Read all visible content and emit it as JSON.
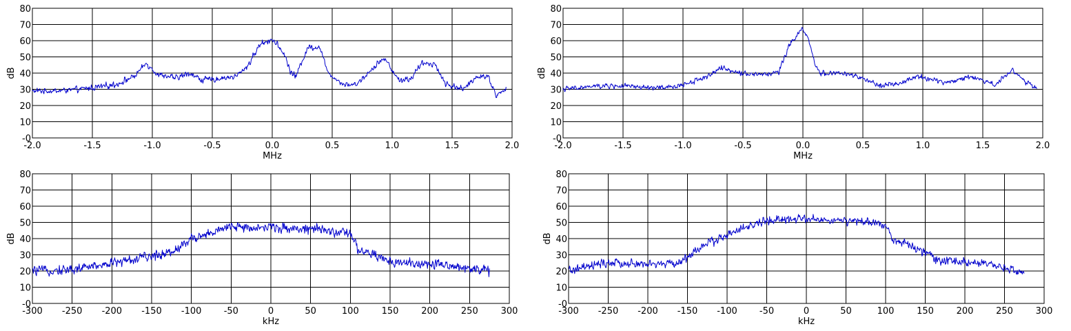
{
  "chart_data": [
    {
      "type": "line",
      "xlabel": "MHz",
      "ylabel": "dB",
      "xlim": [
        -2.0,
        1.95
      ],
      "ylim": [
        0,
        80
      ],
      "xticks": [
        -2.0,
        -1.5,
        -1.0,
        -0.5,
        0.0,
        0.5,
        1.0,
        1.5,
        2.0
      ],
      "xtick_labels": [
        "-2.0",
        "-1.5",
        "-1.0",
        "-0.5",
        "0.0",
        "0.5",
        "1.0",
        "1.5",
        "2.0"
      ],
      "yticks": [
        0,
        10,
        20,
        30,
        40,
        50,
        60,
        70,
        80
      ],
      "ytick_labels": [
        "-0",
        "10",
        "20",
        "30",
        "40",
        "50",
        "60",
        "70",
        "80"
      ],
      "grid": true,
      "color": "#0000cc",
      "series": [
        {
          "x": [
            -2.0,
            -1.8,
            -1.6,
            -1.5,
            -1.3,
            -1.15,
            -1.05,
            -0.95,
            -0.8,
            -0.68,
            -0.6,
            -0.5,
            -0.3,
            -0.2,
            -0.1,
            0.0,
            0.1,
            0.15,
            0.2,
            0.25,
            0.3,
            0.4,
            0.45,
            0.5,
            0.6,
            0.7,
            0.8,
            0.9,
            0.95,
            1.05,
            1.15,
            1.25,
            1.35,
            1.45,
            1.5,
            1.6,
            1.7,
            1.8,
            1.87,
            1.95
          ],
          "y": [
            29,
            29,
            30,
            31,
            33,
            38,
            46,
            39,
            37,
            40,
            36,
            36,
            38,
            45,
            58,
            61,
            52,
            41,
            38,
            48,
            56,
            56,
            43,
            38,
            33,
            33,
            40,
            48,
            48,
            36,
            36,
            46,
            46,
            33,
            32,
            30,
            38,
            38,
            26,
            30
          ],
          "noise": 1.8
        }
      ]
    },
    {
      "type": "line",
      "xlabel": "MHz",
      "ylabel": "dB",
      "xlim": [
        -2.0,
        1.95
      ],
      "ylim": [
        0,
        80
      ],
      "xticks": [
        -2.0,
        -1.5,
        -1.0,
        -0.5,
        0.0,
        0.5,
        1.0,
        1.5,
        2.0
      ],
      "xtick_labels": [
        "-2.0",
        "-1.5",
        "-1.0",
        "-0.5",
        "0.0",
        "0.5",
        "1.0",
        "1.5",
        "2.0"
      ],
      "yticks": [
        0,
        10,
        20,
        30,
        40,
        50,
        60,
        70,
        80
      ],
      "ytick_labels": [
        "-0",
        "10",
        "20",
        "30",
        "40",
        "50",
        "60",
        "70",
        "80"
      ],
      "grid": true,
      "color": "#0000cc",
      "series": [
        {
          "x": [
            -2.0,
            -1.7,
            -1.5,
            -1.3,
            -1.1,
            -0.95,
            -0.8,
            -0.68,
            -0.5,
            -0.3,
            -0.2,
            -0.12,
            -0.05,
            0.0,
            0.05,
            0.1,
            0.15,
            0.3,
            0.45,
            0.6,
            0.8,
            0.95,
            1.2,
            1.4,
            1.6,
            1.75,
            1.85,
            1.95
          ],
          "y": [
            30,
            32,
            32,
            31,
            31,
            34,
            38,
            43,
            40,
            39,
            41,
            56,
            64,
            67,
            60,
            45,
            40,
            40,
            38,
            33,
            33,
            38,
            34,
            38,
            33,
            42,
            35,
            30
          ],
          "noise": 1.6
        }
      ]
    },
    {
      "type": "line",
      "xlabel": "kHz",
      "ylabel": "dB",
      "xlim": [
        -300,
        275
      ],
      "ylim": [
        0,
        80
      ],
      "xticks": [
        -300,
        -250,
        -200,
        -150,
        -100,
        -50,
        0,
        50,
        100,
        150,
        200,
        250,
        300
      ],
      "xtick_labels": [
        "-300",
        "-250",
        "-200",
        "-150",
        "-100",
        "-50",
        "0",
        "50",
        "100",
        "150",
        "200",
        "250",
        "300"
      ],
      "yticks": [
        0,
        10,
        20,
        30,
        40,
        50,
        60,
        70,
        80
      ],
      "ytick_labels": [
        "-0",
        "10",
        "20",
        "30",
        "40",
        "50",
        "60",
        "70",
        "80"
      ],
      "grid": true,
      "color": "#0000cc",
      "series": [
        {
          "x": [
            -300,
            -250,
            -200,
            -150,
            -120,
            -100,
            -80,
            -50,
            0,
            50,
            100,
            110,
            150,
            200,
            250,
            275
          ],
          "y": [
            20,
            21,
            25,
            29,
            33,
            40,
            43,
            47,
            47,
            46,
            43,
            33,
            26,
            24,
            22,
            20
          ],
          "noise": 3.0
        }
      ]
    },
    {
      "type": "line",
      "xlabel": "kHz",
      "ylabel": "dB",
      "xlim": [
        -300,
        275
      ],
      "ylim": [
        0,
        80
      ],
      "xticks": [
        -300,
        -250,
        -200,
        -150,
        -100,
        -50,
        0,
        50,
        100,
        150,
        200,
        250,
        300
      ],
      "xtick_labels": [
        "-300",
        "-250",
        "-200",
        "-150",
        "-100",
        "-50",
        "0",
        "50",
        "100",
        "150",
        "200",
        "250",
        "300"
      ],
      "yticks": [
        0,
        10,
        20,
        30,
        40,
        50,
        60,
        70,
        80
      ],
      "ytick_labels": [
        "-0",
        "10",
        "20",
        "30",
        "40",
        "50",
        "60",
        "70",
        "80"
      ],
      "grid": true,
      "color": "#0000cc",
      "series": [
        {
          "x": [
            -300,
            -250,
            -200,
            -160,
            -130,
            -100,
            -70,
            -50,
            0,
            50,
            100,
            110,
            140,
            170,
            200,
            250,
            275
          ],
          "y": [
            20,
            25,
            24,
            25,
            36,
            42,
            48,
            51,
            52,
            51,
            49,
            39,
            34,
            26,
            26,
            22,
            19
          ],
          "noise": 2.6
        }
      ]
    }
  ]
}
